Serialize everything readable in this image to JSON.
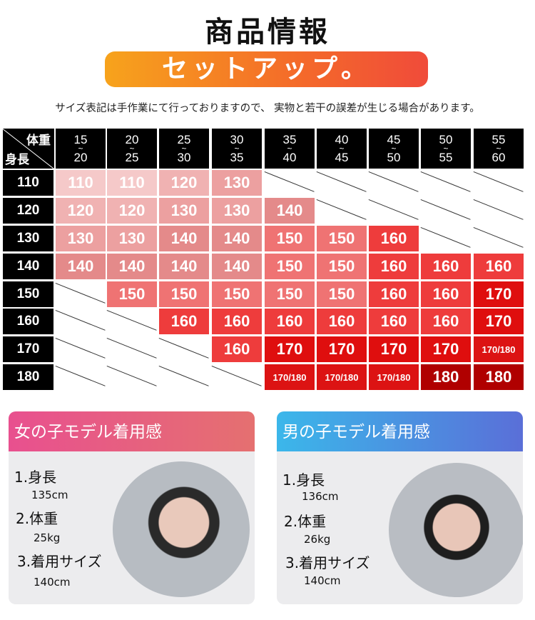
{
  "header": {
    "title": "商品情報",
    "banner": "セットアップ。",
    "note": "サイズ表記は手作業にて行っておりますので、 実物と若干の誤差が生じる場合があります。"
  },
  "size_table": {
    "corner_weight": "体重",
    "corner_height": "身長",
    "weight_columns": [
      [
        "15",
        "~",
        "20"
      ],
      [
        "20",
        "~",
        "25"
      ],
      [
        "25",
        "~",
        "30"
      ],
      [
        "30",
        "~",
        "35"
      ],
      [
        "35",
        "~",
        "40"
      ],
      [
        "40",
        "~",
        "45"
      ],
      [
        "45",
        "~",
        "50"
      ],
      [
        "50",
        "~",
        "55"
      ],
      [
        "55",
        "~",
        "60"
      ]
    ],
    "rows": [
      {
        "height": "110",
        "sizes": [
          "110",
          "110",
          "120",
          "130",
          null,
          null,
          null,
          null,
          null
        ]
      },
      {
        "height": "120",
        "sizes": [
          "120",
          "120",
          "130",
          "130",
          "140",
          null,
          null,
          null,
          null
        ]
      },
      {
        "height": "130",
        "sizes": [
          "130",
          "130",
          "140",
          "140",
          "150",
          "150",
          "160",
          null,
          null
        ]
      },
      {
        "height": "140",
        "sizes": [
          "140",
          "140",
          "140",
          "140",
          "150",
          "150",
          "160",
          "160",
          "160"
        ]
      },
      {
        "height": "150",
        "sizes": [
          null,
          "150",
          "150",
          "150",
          "150",
          "150",
          "160",
          "160",
          "170"
        ]
      },
      {
        "height": "160",
        "sizes": [
          null,
          null,
          "160",
          "160",
          "160",
          "160",
          "160",
          "160",
          "170"
        ]
      },
      {
        "height": "170",
        "sizes": [
          null,
          null,
          null,
          "160",
          "170",
          "170",
          "170",
          "170",
          "170/180"
        ]
      },
      {
        "height": "180",
        "sizes": [
          null,
          null,
          null,
          null,
          "170/180",
          "170/180",
          "170/180",
          "180",
          "180"
        ]
      }
    ],
    "colors": {
      "110": "#f5c9c9",
      "120": "#f0b2b2",
      "130": "#eca0a0",
      "140": "#e48a8a",
      "150": "#ef7373",
      "160": "#ee3c3c",
      "170": "#df0e0e",
      "170/180": "#dc1313",
      "180": "#b00000"
    }
  },
  "models": [
    {
      "title": "女の子モデル着用感",
      "height_label": "1.身長",
      "height": "135cm",
      "weight_label": "2.体重",
      "weight": "25kg",
      "size_label": "3.着用サイズ",
      "size": "140cm",
      "header_gradient": [
        "#e8508f",
        "#e57070"
      ]
    },
    {
      "title": "男の子モデル着用感",
      "height_label": "1.身長",
      "height": "136cm",
      "weight_label": "2.体重",
      "weight": "26kg",
      "size_label": "3.着用サイズ",
      "size": "140cm",
      "header_gradient": [
        "#3bb7ea",
        "#5a6fd8"
      ]
    }
  ]
}
